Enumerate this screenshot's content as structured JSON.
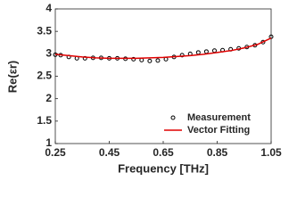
{
  "chart_data": {
    "type": "line",
    "xlabel": "Frequency [THz]",
    "ylabel": "Re(εr)",
    "xlim": [
      0.25,
      1.05
    ],
    "xticks": [
      0.25,
      0.45,
      0.65,
      0.85,
      1.05
    ],
    "ylim": [
      1,
      4
    ],
    "yticks": [
      1,
      1.5,
      2,
      2.5,
      3,
      3.5,
      4
    ],
    "grid": false,
    "legend": "lower right",
    "series": [
      {
        "name": "Measurement",
        "color": "#000000",
        "style": "marker",
        "x": [
          0.25,
          0.27,
          0.3,
          0.33,
          0.36,
          0.39,
          0.42,
          0.45,
          0.48,
          0.51,
          0.54,
          0.57,
          0.6,
          0.63,
          0.66,
          0.69,
          0.72,
          0.75,
          0.78,
          0.81,
          0.84,
          0.87,
          0.9,
          0.93,
          0.96,
          0.99,
          1.02,
          1.05
        ],
        "values": [
          2.98,
          2.97,
          2.93,
          2.9,
          2.9,
          2.91,
          2.91,
          2.9,
          2.9,
          2.89,
          2.88,
          2.86,
          2.84,
          2.85,
          2.88,
          2.93,
          2.97,
          3.0,
          3.03,
          3.05,
          3.07,
          3.08,
          3.1,
          3.12,
          3.15,
          3.19,
          3.26,
          3.38
        ]
      },
      {
        "name": "Vector Fitting",
        "color": "#e00000",
        "style": "line",
        "x": [
          0.25,
          0.3,
          0.35,
          0.4,
          0.45,
          0.5,
          0.55,
          0.6,
          0.65,
          0.7,
          0.75,
          0.8,
          0.85,
          0.9,
          0.95,
          1.0,
          1.05
        ],
        "values": [
          2.99,
          2.96,
          2.93,
          2.91,
          2.9,
          2.9,
          2.9,
          2.91,
          2.92,
          2.94,
          2.96,
          2.99,
          3.03,
          3.07,
          3.13,
          3.21,
          3.35
        ]
      }
    ]
  }
}
